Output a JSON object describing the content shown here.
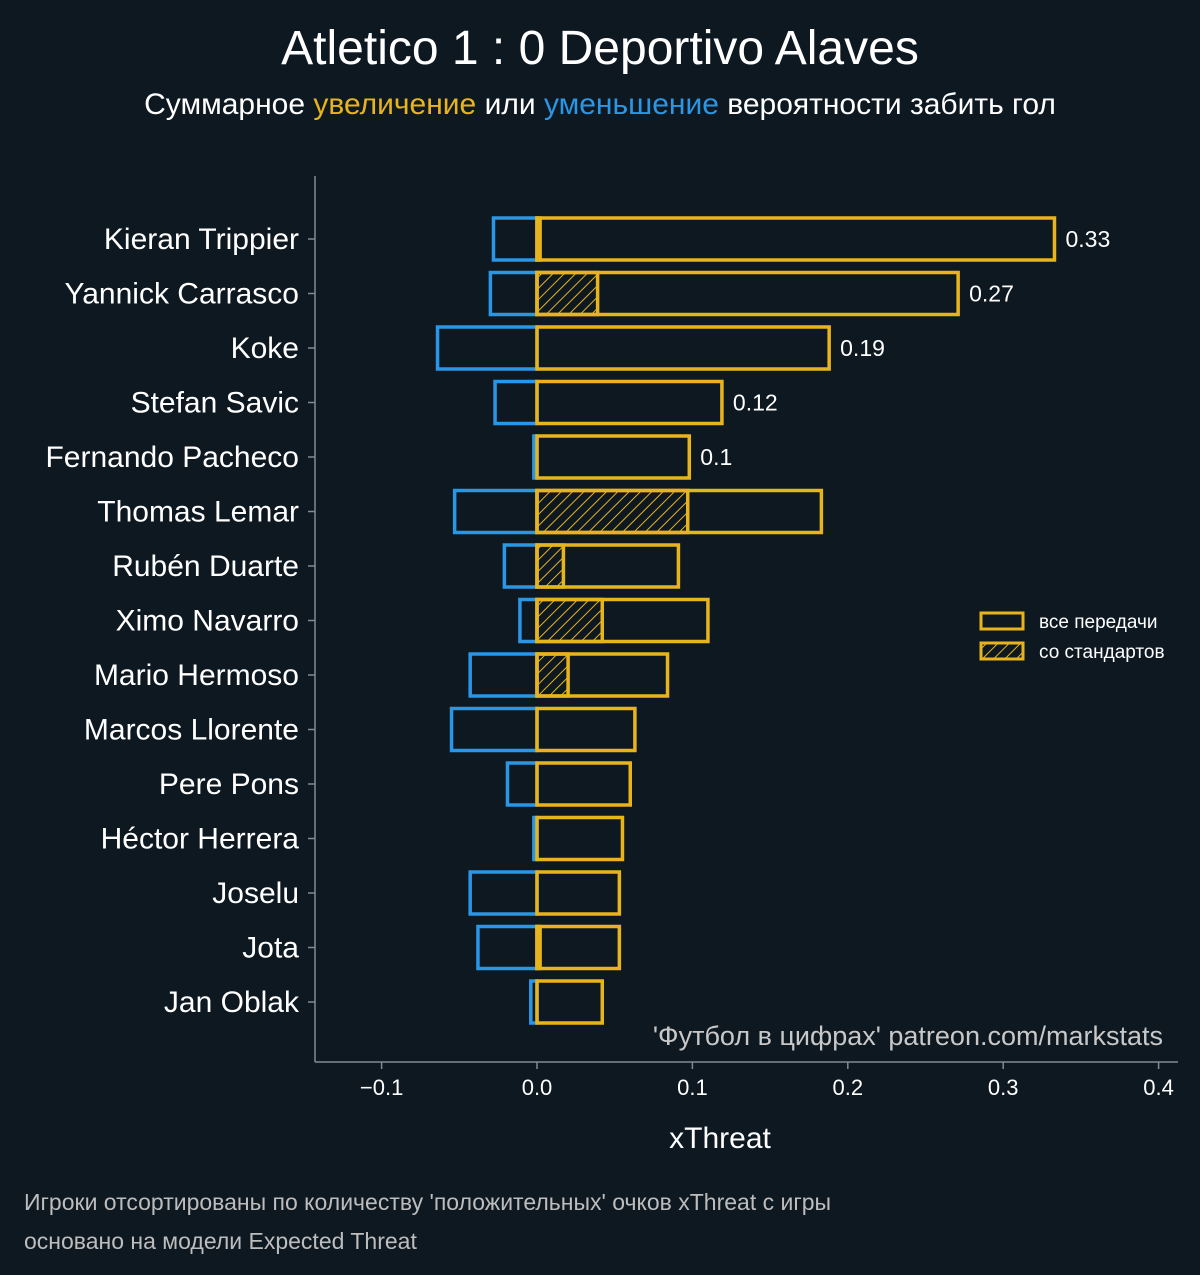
{
  "title": "Atletico 1 : 0 Deportivo Alaves",
  "subtitle": {
    "prefix": "Суммарное ",
    "increase": "увеличение",
    "middle": " или ",
    "decrease": "уменьшение",
    "suffix": " вероятности забить гол"
  },
  "colors": {
    "increase": "#e8b41e",
    "decrease": "#2a96e6",
    "background": "#0e1821",
    "axis": "#7e8c96"
  },
  "chart_data": {
    "type": "bar",
    "orientation": "horizontal",
    "categories": [
      "Kieran Trippier",
      "Yannick Carrasco",
      "Koke",
      "Stefan Savic",
      "Fernando Pacheco",
      "Thomas Lemar",
      "Rubén Duarte",
      "Ximo Navarro",
      "Mario Hermoso",
      "Marcos Llorente",
      "Pere Pons",
      "Héctor Herrera",
      "Joselu",
      "Jota",
      "Jan Oblak"
    ],
    "series": [
      {
        "name": "все передачи",
        "key": "positive",
        "values": [
          0.333,
          0.271,
          0.188,
          0.119,
          0.098,
          0.183,
          0.091,
          0.11,
          0.084,
          0.063,
          0.06,
          0.055,
          0.053,
          0.053,
          0.042
        ]
      },
      {
        "name": "со стандартов",
        "key": "set_pieces",
        "values": [
          0.002,
          0.039,
          0.0,
          0.0,
          0.0,
          0.097,
          0.017,
          0.042,
          0.02,
          0.0,
          0.0,
          0.0,
          0.0,
          0.002,
          0.0
        ]
      },
      {
        "key": "negative",
        "values": [
          -0.028,
          -0.03,
          -0.064,
          -0.027,
          -0.002,
          -0.053,
          -0.021,
          -0.011,
          -0.043,
          -0.055,
          -0.019,
          -0.002,
          -0.043,
          -0.038,
          -0.004
        ]
      }
    ],
    "value_labels": [
      "0.33",
      "0.27",
      "0.19",
      "0.12",
      "0.1"
    ],
    "xlabel": "xThreat",
    "xlim": [
      -0.145,
      0.415
    ],
    "xticks": [
      -0.1,
      0.0,
      0.1,
      0.2,
      0.3,
      0.4
    ],
    "xtick_labels": [
      "−0.1",
      "0.0",
      "0.1",
      "0.2",
      "0.3",
      "0.4"
    ],
    "legend": {
      "placement": "right",
      "entries": [
        "все передачи",
        "со стандартов"
      ]
    }
  },
  "watermark": "'Футбол в цифрах' patreon.com/markstats",
  "footnotes": [
    "Игроки отсортированы по количеству 'положительных' очков xThreat с игры",
    "основано на модели Expected Threat"
  ]
}
